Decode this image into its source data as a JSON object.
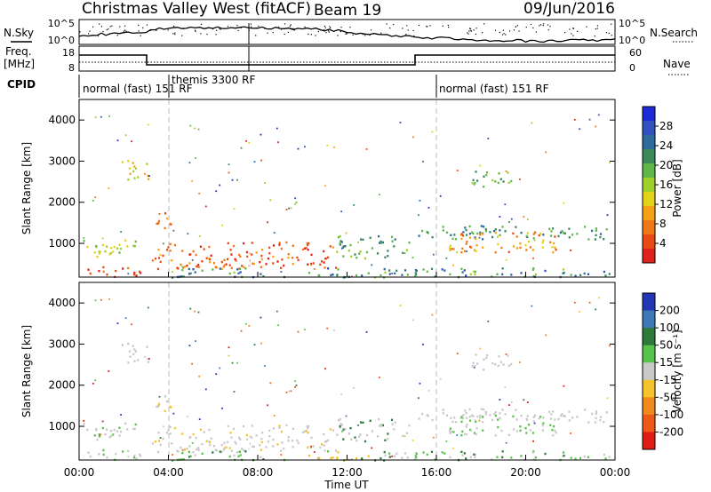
{
  "title": {
    "station": "Christmas Valley West (fitACF)",
    "beam": "Beam 19",
    "date": "09/Jun/2016"
  },
  "top_panels": {
    "nsky_label": "N.Sky",
    "nsearch_label": "N.Search",
    "freq_label_1": "Freq.",
    "freq_label_2": "[MHz]",
    "nave_label": "Nave",
    "cpid_label": "CPID",
    "nsky_ticks": [
      "10^5",
      "10^0"
    ],
    "nsearch_ticks": [
      "10^5",
      "10^0"
    ],
    "freq_ticks": [
      "18",
      "8"
    ],
    "nave_ticks": [
      "60",
      "0"
    ]
  },
  "cpid": [
    {
      "label": "normal (fast) 151 RF",
      "start_hour": 0
    },
    {
      "label": "themis 3300 RF",
      "start_hour": 4
    },
    {
      "label": "normal (fast) 151 RF",
      "start_hour": 16
    }
  ],
  "chart_data": [
    {
      "type": "heatmap",
      "name": "power",
      "ylabel": "Slant Range [km]",
      "xlabel": "",
      "x_range_hours": [
        0,
        24
      ],
      "ylim": [
        180,
        4500
      ],
      "y_ticks": [
        "1000",
        "2000",
        "3000",
        "4000"
      ],
      "colorbar": {
        "label": "Power [dB]",
        "ticks": [
          "4",
          "8",
          "12",
          "16",
          "20",
          "24",
          "28"
        ],
        "range": [
          0,
          32
        ],
        "colors": [
          "#1e2ad8",
          "#2f52c0",
          "#2e6a9a",
          "#3a8a5a",
          "#5eb84a",
          "#9fcf2a",
          "#e4d21a",
          "#f5a216",
          "#f07814",
          "#e84a14",
          "#e0201a"
        ]
      }
    },
    {
      "type": "heatmap",
      "name": "velocity",
      "ylabel": "Slant Range [km]",
      "xlabel": "Time UT",
      "x_range_hours": [
        0,
        24
      ],
      "x_ticks": [
        "00:00",
        "04:00",
        "08:00",
        "12:00",
        "16:00",
        "20:00",
        "00:00"
      ],
      "ylim": [
        180,
        4500
      ],
      "y_ticks": [
        "1000",
        "2000",
        "3000",
        "4000"
      ],
      "colorbar": {
        "label": "Velocity [m s⁻¹]",
        "ticks": [
          "200",
          "100",
          "50",
          "15",
          "-15",
          "-50",
          "-100",
          "-200"
        ],
        "colors": [
          "#2336b5",
          "#3b7ab6",
          "#2e7a3a",
          "#57c449",
          "#c9c9c9",
          "#f5c32b",
          "#f08a1c",
          "#ee5a16",
          "#e01b14"
        ]
      }
    }
  ]
}
